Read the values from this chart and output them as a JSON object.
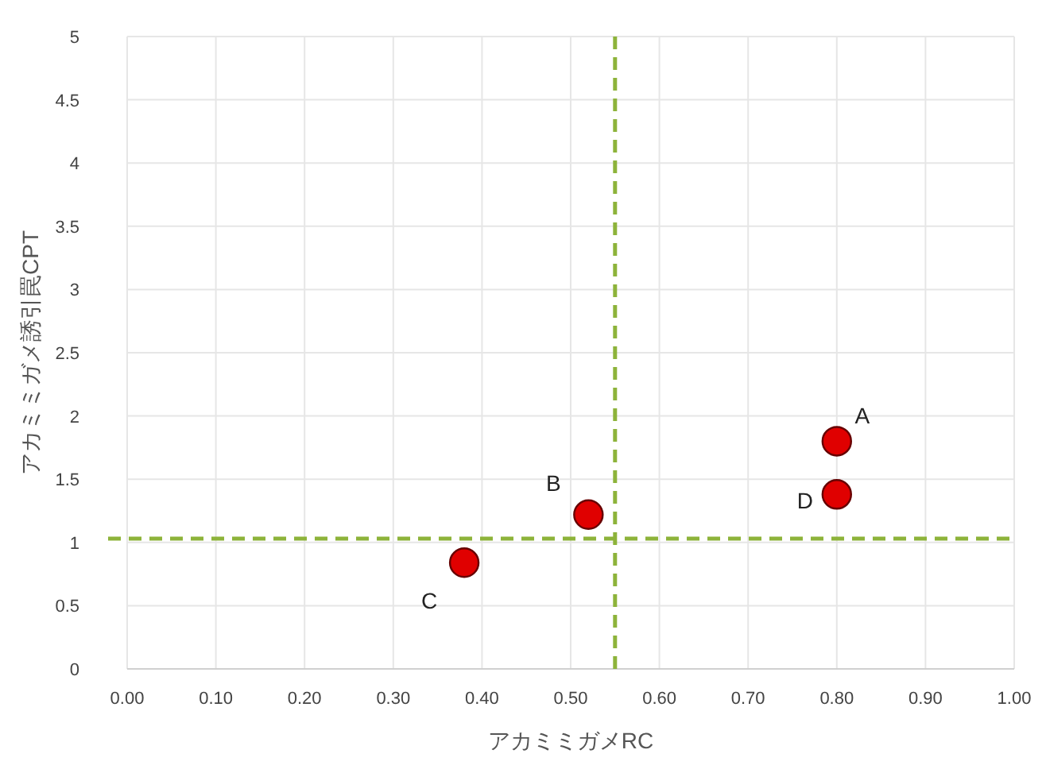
{
  "chart_data": {
    "type": "scatter",
    "xlabel": "アカミミガメRC",
    "ylabel": "アカミミガメ誘引罠CPT",
    "xlim": [
      0,
      1
    ],
    "xticks": [
      {
        "value": 0,
        "label": "0.00"
      },
      {
        "value": 0.1,
        "label": "0.10"
      },
      {
        "value": 0.2,
        "label": "0.20"
      },
      {
        "value": 0.3,
        "label": "0.30"
      },
      {
        "value": 0.4,
        "label": "0.40"
      },
      {
        "value": 0.5,
        "label": "0.50"
      },
      {
        "value": 0.6,
        "label": "0.60"
      },
      {
        "value": 0.7,
        "label": "0.70"
      },
      {
        "value": 0.8,
        "label": "0.80"
      },
      {
        "value": 0.9,
        "label": "0.90"
      },
      {
        "value": 1,
        "label": "1.00"
      }
    ],
    "ylim": [
      0,
      5
    ],
    "yticks": [
      0,
      0.5,
      1,
      1.5,
      2,
      2.5,
      3,
      3.5,
      4,
      4.5,
      5
    ],
    "grid": true,
    "marker": "circle",
    "series": [
      {
        "color": "#e00000",
        "x": [
          0.8,
          0.52,
          0.38,
          0.8
        ],
        "values": [
          1.8,
          1.22,
          0.84,
          1.38
        ],
        "value_labels": [
          "A",
          "B",
          "C",
          "D"
        ]
      }
    ],
    "ref_lines": [
      {
        "axis": "x",
        "value": 0.55,
        "color": "#8db33a",
        "line_style": "dashed"
      },
      {
        "axis": "y",
        "value": 1.03,
        "color": "#8db33a",
        "line_style": "dashed"
      }
    ]
  }
}
